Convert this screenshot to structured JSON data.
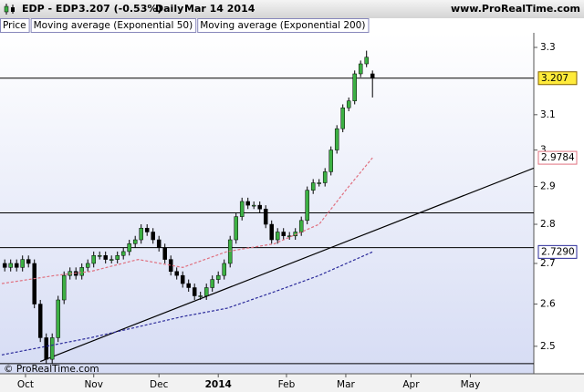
{
  "chart_data": {
    "type": "candlestick",
    "title": "EDP - EDP",
    "quote": "3.207 (-0.53%)",
    "period": "Daily",
    "date": "Mar 14 2014",
    "source": "www.ProRealTime.com",
    "watermark": "© ProRealTime.com",
    "log_scale": true,
    "xlim": [
      -8.6,
      171.4
    ],
    "ylim": [
      2.437,
      3.345
    ],
    "xticks": [
      {
        "value": 0,
        "label": "Oct"
      },
      {
        "value": 23,
        "label": "Nov"
      },
      {
        "value": 45,
        "label": "Dec"
      },
      {
        "value": 65,
        "label": "2014"
      },
      {
        "value": 88,
        "label": "Feb"
      },
      {
        "value": 108,
        "label": "Mar"
      },
      {
        "value": 130,
        "label": "Apr"
      },
      {
        "value": 150,
        "label": "May"
      }
    ],
    "yticks": [
      2.5,
      2.6,
      2.7,
      2.8,
      2.9,
      3,
      3.1,
      3.3
    ],
    "hlines": [
      3.207,
      2.83,
      2.74,
      2.46
    ],
    "trendline": {
      "x": [
        5,
        171.4
      ],
      "y": [
        2.465,
        2.95
      ]
    },
    "x": [
      -7,
      -5,
      -3,
      -1,
      1,
      3,
      5,
      7,
      9,
      11,
      13,
      15,
      17,
      19,
      21,
      23,
      25,
      27,
      29,
      31,
      33,
      35,
      37,
      39,
      41,
      43,
      45,
      47,
      49,
      51,
      53,
      55,
      57,
      59,
      61,
      63,
      65,
      67,
      69,
      71,
      73,
      75,
      77,
      79,
      81,
      83,
      85,
      87,
      89,
      91,
      93,
      95,
      97,
      99,
      101,
      103,
      105,
      107,
      109,
      111,
      113,
      115,
      117
    ],
    "series": [
      {
        "name": "Price",
        "type": "candlestick",
        "up_color": "#3cb043",
        "down_color": "#000000",
        "open": [
          2.7,
          2.69,
          2.7,
          2.69,
          2.71,
          2.7,
          2.6,
          2.52,
          2.47,
          2.52,
          2.61,
          2.67,
          2.68,
          2.67,
          2.69,
          2.7,
          2.72,
          2.72,
          2.71,
          2.71,
          2.72,
          2.73,
          2.75,
          2.76,
          2.79,
          2.78,
          2.76,
          2.74,
          2.71,
          2.68,
          2.67,
          2.65,
          2.64,
          2.62,
          2.62,
          2.64,
          2.66,
          2.67,
          2.7,
          2.76,
          2.82,
          2.86,
          2.85,
          2.85,
          2.84,
          2.8,
          2.76,
          2.78,
          2.77,
          2.77,
          2.78,
          2.81,
          2.89,
          2.91,
          2.91,
          2.94,
          3.0,
          3.06,
          3.12,
          3.14,
          3.22,
          3.25,
          3.22
        ],
        "high": [
          2.71,
          2.71,
          2.71,
          2.72,
          2.72,
          2.71,
          2.61,
          2.53,
          2.53,
          2.62,
          2.68,
          2.69,
          2.69,
          2.7,
          2.71,
          2.73,
          2.73,
          2.73,
          2.72,
          2.73,
          2.74,
          2.76,
          2.77,
          2.8,
          2.8,
          2.79,
          2.77,
          2.75,
          2.72,
          2.69,
          2.68,
          2.66,
          2.65,
          2.63,
          2.65,
          2.67,
          2.68,
          2.71,
          2.77,
          2.83,
          2.87,
          2.87,
          2.86,
          2.86,
          2.85,
          2.81,
          2.79,
          2.79,
          2.78,
          2.79,
          2.82,
          2.9,
          2.92,
          2.92,
          2.95,
          3.01,
          3.07,
          3.13,
          3.15,
          3.23,
          3.26,
          3.29,
          3.23
        ],
        "low": [
          2.68,
          2.68,
          2.68,
          2.68,
          2.69,
          2.59,
          2.51,
          2.46,
          2.46,
          2.51,
          2.6,
          2.66,
          2.66,
          2.66,
          2.68,
          2.69,
          2.71,
          2.7,
          2.7,
          2.7,
          2.71,
          2.72,
          2.74,
          2.75,
          2.77,
          2.75,
          2.73,
          2.7,
          2.67,
          2.66,
          2.64,
          2.63,
          2.61,
          2.61,
          2.61,
          2.63,
          2.65,
          2.66,
          2.69,
          2.75,
          2.81,
          2.84,
          2.84,
          2.83,
          2.79,
          2.75,
          2.75,
          2.76,
          2.76,
          2.76,
          2.77,
          2.8,
          2.88,
          2.9,
          2.9,
          2.93,
          2.99,
          3.05,
          3.11,
          3.13,
          3.21,
          3.24,
          3.15
        ],
        "close": [
          2.69,
          2.7,
          2.69,
          2.71,
          2.7,
          2.6,
          2.52,
          2.47,
          2.52,
          2.61,
          2.67,
          2.68,
          2.67,
          2.69,
          2.7,
          2.72,
          2.72,
          2.71,
          2.71,
          2.72,
          2.73,
          2.75,
          2.76,
          2.79,
          2.78,
          2.76,
          2.74,
          2.71,
          2.68,
          2.67,
          2.65,
          2.64,
          2.62,
          2.62,
          2.64,
          2.66,
          2.67,
          2.7,
          2.76,
          2.82,
          2.86,
          2.85,
          2.85,
          2.84,
          2.8,
          2.76,
          2.78,
          2.77,
          2.77,
          2.78,
          2.81,
          2.89,
          2.91,
          2.91,
          2.94,
          3.0,
          3.06,
          3.12,
          3.14,
          3.22,
          3.25,
          3.27,
          3.207
        ]
      },
      {
        "name": "Moving average (Exponential 50)",
        "type": "line",
        "color": "#e0707f",
        "x": [
          -8,
          10,
          22,
          38,
          53,
          68,
          84,
          99,
          108,
          117
        ],
        "values": [
          2.65,
          2.67,
          2.68,
          2.71,
          2.69,
          2.73,
          2.75,
          2.8,
          2.89,
          2.9784
        ],
        "value_labels": [
          null,
          null,
          null,
          null,
          null,
          null,
          null,
          null,
          null,
          "2.9784"
        ]
      },
      {
        "name": "Moving average (Exponential 200)",
        "type": "line",
        "color": "#2a2a9a",
        "x": [
          -8,
          22,
          53,
          68,
          84,
          99,
          117
        ],
        "values": [
          2.48,
          2.52,
          2.57,
          2.59,
          2.63,
          2.67,
          2.729
        ],
        "value_labels": [
          null,
          null,
          null,
          null,
          null,
          null,
          "2.7290"
        ]
      }
    ]
  }
}
